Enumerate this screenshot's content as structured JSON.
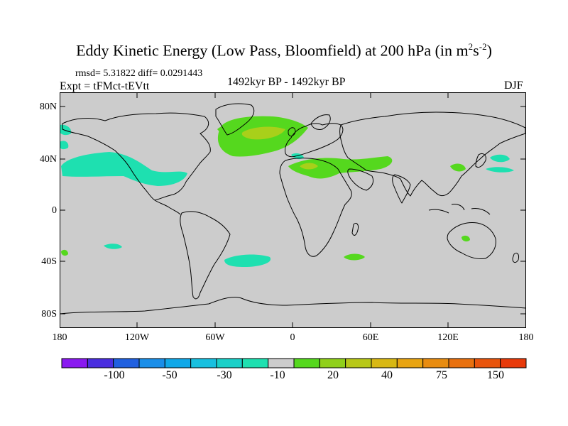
{
  "title": {
    "main": "Eddy Kinetic Energy (Low Pass, Bloomfield) at 200 hPa (in m",
    "sup1": "2",
    "mid": "s",
    "sup2": "-2",
    "end": ")"
  },
  "stats": "rmsd= 5.31822 diff= 0.0291443",
  "expt": "Expt = tFMct-tEVtt",
  "period": "1492kyr BP - 1492kyr BP",
  "season": "DJF",
  "lat_labels": [
    "80N",
    "40N",
    "0",
    "40S",
    "80S"
  ],
  "lon_labels": [
    "180",
    "120W",
    "60W",
    "0",
    "60E",
    "120E",
    "180"
  ],
  "colorbar": {
    "labels": [
      "-100",
      "-50",
      "-30",
      "-10",
      "20",
      "40",
      "75",
      "150"
    ],
    "colors": [
      "#8a19f0",
      "#4a2ee0",
      "#2060e0",
      "#1a8ee8",
      "#10a8e8",
      "#18c0e0",
      "#1ad0c8",
      "#1ee0b0",
      "#cccccc",
      "#55d81e",
      "#90d01a",
      "#b8c818",
      "#d8b814",
      "#e8a412",
      "#e88c10",
      "#e8700e",
      "#e8540c",
      "#e83a0a"
    ]
  },
  "palette": {
    "ocean_land": "#cccccc",
    "cyan": "#1ee0b0",
    "green": "#55d81e",
    "yellow_green": "#a8d01a",
    "orange": "#d8b814"
  }
}
